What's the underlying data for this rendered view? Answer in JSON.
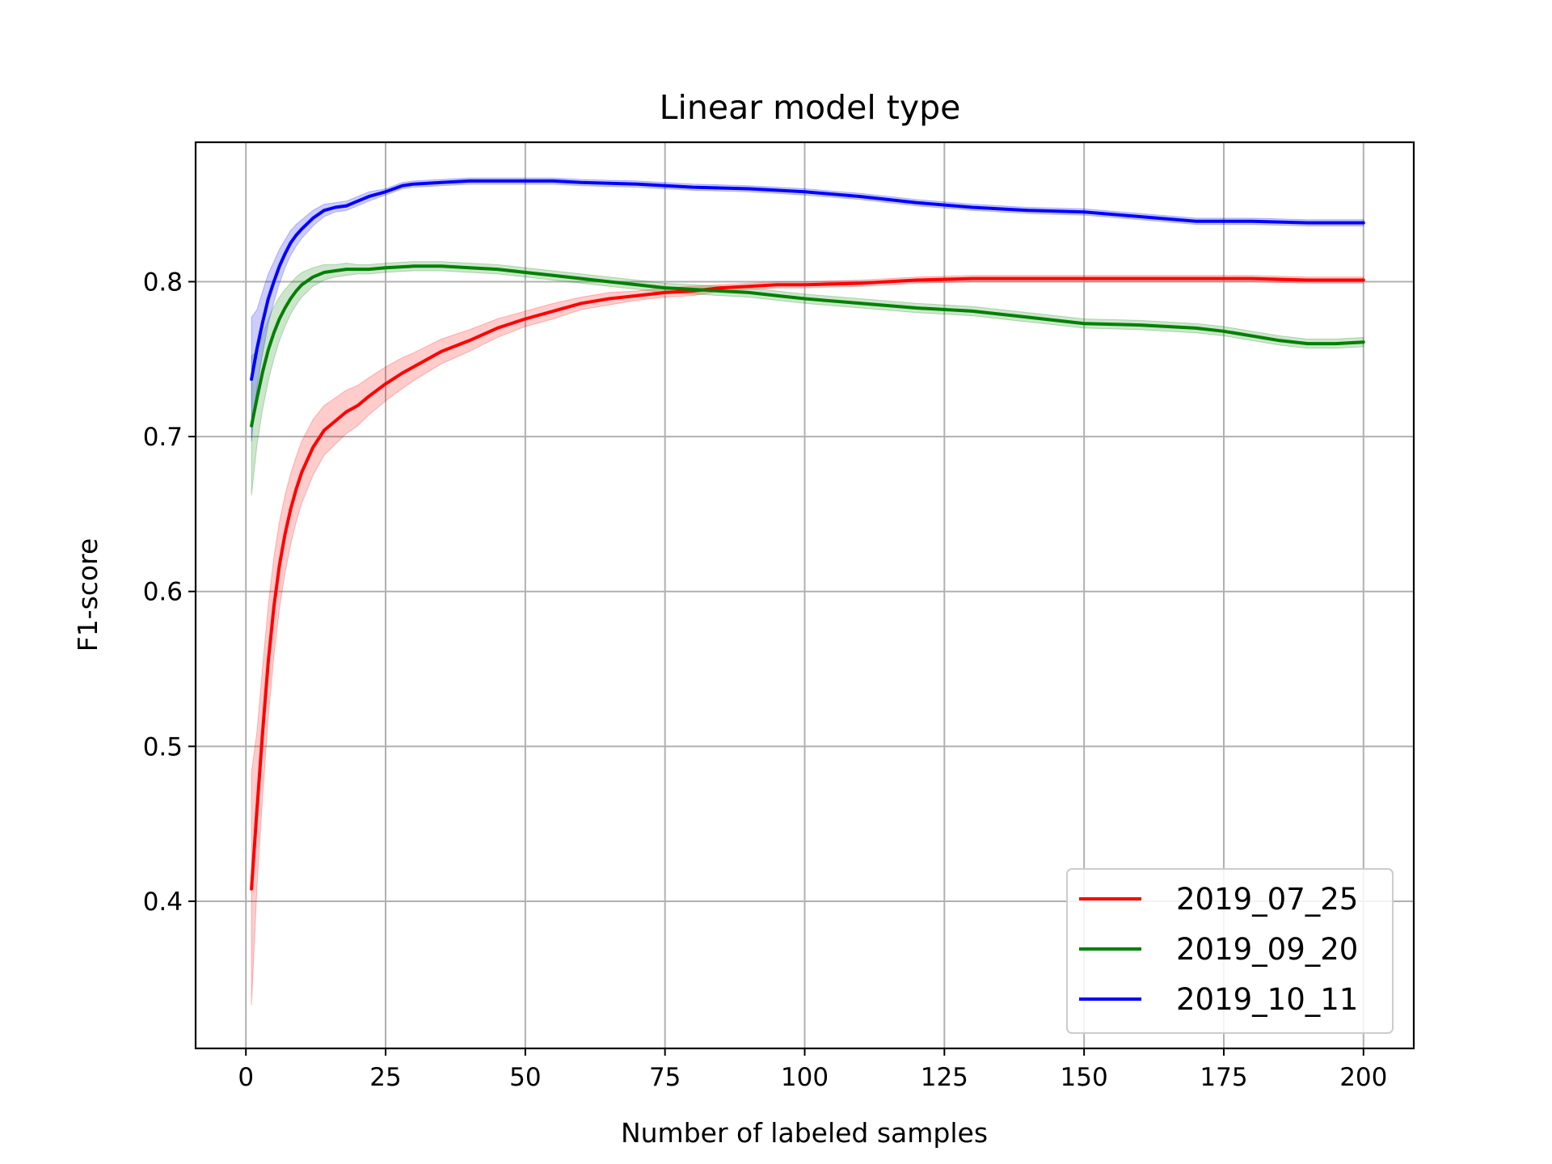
{
  "chart_data": {
    "type": "line",
    "title": "Linear model type",
    "xlabel": "Number of labeled samples",
    "ylabel": "F1-score",
    "xlim": [
      -9,
      209
    ],
    "ylim": [
      0.305,
      0.89
    ],
    "xticks": [
      0,
      25,
      50,
      75,
      100,
      125,
      150,
      175,
      200
    ],
    "yticks": [
      0.4,
      0.5,
      0.6,
      0.7,
      0.8
    ],
    "xtick_labels": [
      "0",
      "25",
      "50",
      "75",
      "100",
      "125",
      "150",
      "175",
      "200"
    ],
    "ytick_labels": [
      "0.4",
      "0.5",
      "0.6",
      "0.7",
      "0.8"
    ],
    "grid": true,
    "legend_position": "lower-right",
    "series": [
      {
        "name": "2019_07_25",
        "color": "#ff0000",
        "x": [
          1,
          2,
          3,
          4,
          5,
          6,
          7,
          8,
          9,
          10,
          12,
          14,
          16,
          18,
          20,
          22,
          25,
          28,
          30,
          35,
          40,
          45,
          50,
          55,
          60,
          65,
          70,
          75,
          80,
          85,
          90,
          95,
          100,
          110,
          120,
          130,
          140,
          150,
          160,
          170,
          180,
          190,
          200
        ],
        "y": [
          0.408,
          0.46,
          0.51,
          0.555,
          0.59,
          0.617,
          0.637,
          0.653,
          0.666,
          0.677,
          0.693,
          0.704,
          0.71,
          0.716,
          0.72,
          0.726,
          0.734,
          0.741,
          0.745,
          0.755,
          0.762,
          0.77,
          0.776,
          0.781,
          0.786,
          0.789,
          0.791,
          0.793,
          0.794,
          0.796,
          0.797,
          0.798,
          0.798,
          0.799,
          0.801,
          0.802,
          0.802,
          0.802,
          0.802,
          0.802,
          0.802,
          0.801,
          0.801
        ],
        "band": [
          0.075,
          0.05,
          0.042,
          0.036,
          0.032,
          0.028,
          0.025,
          0.023,
          0.021,
          0.02,
          0.018,
          0.016,
          0.015,
          0.014,
          0.013,
          0.012,
          0.011,
          0.01,
          0.009,
          0.008,
          0.007,
          0.006,
          0.005,
          0.005,
          0.004,
          0.004,
          0.003,
          0.003,
          0.003,
          0.002,
          0.002,
          0.002,
          0.002,
          0.002,
          0.002,
          0.002,
          0.002,
          0.002,
          0.002,
          0.002,
          0.002,
          0.002,
          0.002
        ]
      },
      {
        "name": "2019_09_20",
        "color": "#008000",
        "x": [
          1,
          2,
          3,
          4,
          5,
          6,
          7,
          8,
          9,
          10,
          12,
          14,
          16,
          18,
          20,
          22,
          25,
          30,
          35,
          40,
          45,
          50,
          55,
          60,
          65,
          70,
          75,
          80,
          85,
          90,
          95,
          100,
          110,
          120,
          130,
          140,
          150,
          160,
          170,
          175,
          180,
          185,
          190,
          195,
          200
        ],
        "y": [
          0.707,
          0.725,
          0.742,
          0.756,
          0.767,
          0.776,
          0.783,
          0.789,
          0.794,
          0.798,
          0.803,
          0.806,
          0.807,
          0.808,
          0.808,
          0.808,
          0.809,
          0.81,
          0.81,
          0.809,
          0.808,
          0.806,
          0.804,
          0.802,
          0.8,
          0.798,
          0.796,
          0.795,
          0.794,
          0.793,
          0.791,
          0.789,
          0.786,
          0.783,
          0.781,
          0.777,
          0.773,
          0.772,
          0.77,
          0.768,
          0.765,
          0.762,
          0.76,
          0.76,
          0.761
        ],
        "band": [
          0.045,
          0.03,
          0.024,
          0.02,
          0.017,
          0.014,
          0.012,
          0.01,
          0.009,
          0.008,
          0.006,
          0.005,
          0.004,
          0.004,
          0.003,
          0.003,
          0.003,
          0.003,
          0.003,
          0.003,
          0.003,
          0.003,
          0.003,
          0.003,
          0.003,
          0.003,
          0.003,
          0.003,
          0.003,
          0.003,
          0.003,
          0.003,
          0.003,
          0.003,
          0.003,
          0.003,
          0.003,
          0.003,
          0.003,
          0.003,
          0.003,
          0.003,
          0.003,
          0.003,
          0.003
        ]
      },
      {
        "name": "2019_10_11",
        "color": "#0000ff",
        "x": [
          1,
          2,
          3,
          4,
          5,
          6,
          7,
          8,
          9,
          10,
          12,
          14,
          16,
          18,
          20,
          22,
          25,
          28,
          30,
          35,
          40,
          45,
          50,
          55,
          60,
          70,
          80,
          90,
          100,
          110,
          120,
          130,
          140,
          150,
          160,
          170,
          180,
          190,
          200
        ],
        "y": [
          0.737,
          0.757,
          0.774,
          0.789,
          0.8,
          0.81,
          0.818,
          0.825,
          0.83,
          0.834,
          0.841,
          0.846,
          0.848,
          0.849,
          0.852,
          0.855,
          0.858,
          0.862,
          0.863,
          0.864,
          0.865,
          0.865,
          0.865,
          0.865,
          0.864,
          0.863,
          0.861,
          0.86,
          0.858,
          0.855,
          0.851,
          0.848,
          0.846,
          0.845,
          0.842,
          0.839,
          0.839,
          0.838,
          0.838
        ],
        "band": [
          0.04,
          0.025,
          0.02,
          0.016,
          0.013,
          0.011,
          0.009,
          0.008,
          0.007,
          0.006,
          0.005,
          0.004,
          0.003,
          0.003,
          0.003,
          0.003,
          0.002,
          0.002,
          0.002,
          0.002,
          0.002,
          0.002,
          0.002,
          0.002,
          0.002,
          0.002,
          0.002,
          0.002,
          0.002,
          0.002,
          0.002,
          0.002,
          0.002,
          0.002,
          0.002,
          0.002,
          0.002,
          0.002,
          0.002
        ]
      }
    ]
  }
}
